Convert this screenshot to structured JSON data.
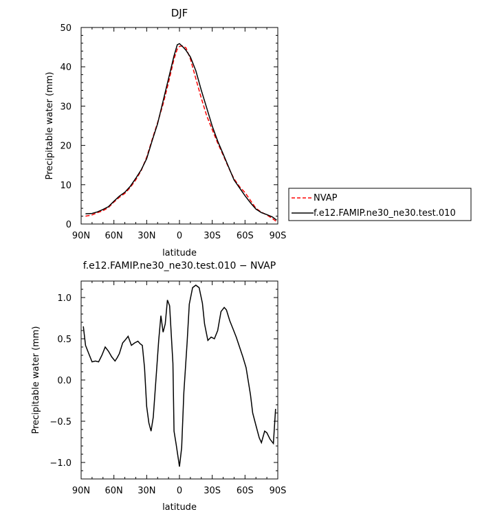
{
  "chart_data": [
    {
      "type": "line",
      "title": "DJF",
      "xlabel": "latitude",
      "ylabel": "Precipitable water (mm)",
      "xlim": [
        -90,
        90
      ],
      "ylim": [
        0,
        50
      ],
      "x_ticks": [
        -90,
        -60,
        -30,
        0,
        30,
        60,
        90
      ],
      "x_tick_labels": [
        "90N",
        "60N",
        "30N",
        "0",
        "30S",
        "60S",
        "90S"
      ],
      "y_ticks": [
        0,
        10,
        20,
        30,
        40,
        50
      ],
      "y_tick_labels": [
        "0",
        "10",
        "20",
        "30",
        "40",
        "50"
      ],
      "legend_position": "right",
      "series": [
        {
          "name": "NVAP",
          "color": "#ff0000",
          "dash": "dashed",
          "x": [
            -86,
            -80,
            -75,
            -70,
            -65,
            -60,
            -55,
            -50,
            -45,
            -40,
            -35,
            -30,
            -25,
            -20,
            -15,
            -10,
            -5,
            -2,
            0,
            3,
            6,
            10,
            15,
            20,
            25,
            30,
            35,
            40,
            45,
            50,
            55,
            60,
            65,
            70,
            75,
            80,
            85,
            89
          ],
          "y": [
            2.0,
            2.3,
            2.9,
            3.4,
            4.2,
            5.6,
            6.8,
            7.8,
            9.3,
            11.2,
            13.6,
            17.0,
            21.5,
            25.8,
            30.5,
            36.0,
            42.0,
            44.5,
            45.2,
            45.3,
            44.8,
            42.0,
            37.0,
            32.0,
            27.5,
            24.0,
            20.6,
            17.5,
            14.3,
            11.5,
            9.5,
            8.0,
            6.0,
            4.0,
            3.0,
            2.3,
            1.4,
            0.6
          ]
        },
        {
          "name": "f.e12.FAMIP.ne30_ne30.test.010",
          "color": "#000000",
          "dash": "solid",
          "x": [
            -86,
            -80,
            -75,
            -70,
            -65,
            -60,
            -55,
            -50,
            -45,
            -40,
            -35,
            -30,
            -25,
            -20,
            -15,
            -10,
            -5,
            -2,
            0,
            3,
            6,
            10,
            15,
            20,
            25,
            30,
            35,
            40,
            45,
            50,
            55,
            60,
            65,
            70,
            75,
            80,
            85,
            89
          ],
          "y": [
            2.6,
            2.7,
            3.1,
            3.7,
            4.4,
            5.8,
            7.1,
            8.1,
            9.6,
            11.6,
            13.8,
            16.6,
            21.2,
            25.5,
            31.3,
            37.0,
            42.8,
            45.6,
            45.9,
            45.1,
            44.2,
            42.5,
            39.0,
            34.0,
            29.5,
            24.9,
            21.1,
            17.8,
            14.5,
            11.2,
            9.2,
            7.2,
            5.4,
            3.8,
            2.9,
            2.4,
            1.8,
            1.0
          ]
        }
      ]
    },
    {
      "type": "line",
      "title": "f.e12.FAMIP.ne30_ne30.test.010 − NVAP",
      "xlabel": "latitude",
      "ylabel": "Precipitable water (mm)",
      "xlim": [
        -90,
        90
      ],
      "ylim": [
        -1.2,
        1.2
      ],
      "x_ticks": [
        -90,
        -60,
        -30,
        0,
        30,
        60,
        90
      ],
      "x_tick_labels": [
        "90N",
        "60N",
        "30N",
        "0",
        "30S",
        "60S",
        "90S"
      ],
      "y_ticks": [
        -1.0,
        -0.5,
        0.0,
        0.5,
        1.0
      ],
      "y_tick_labels": [
        "−1.0",
        "−0.5",
        "0.0",
        "0.5",
        "1.0"
      ],
      "series": [
        {
          "color": "#000000",
          "dash": "solid",
          "x": [
            -88,
            -86,
            -83,
            -80,
            -77,
            -74,
            -71,
            -68,
            -65,
            -62,
            -59,
            -57,
            -55,
            -52,
            -50,
            -47,
            -44,
            -41,
            -38,
            -36,
            -34,
            -32,
            -30,
            -28,
            -26,
            -24,
            -21,
            -19,
            -17,
            -15,
            -13,
            -11,
            -9,
            -6,
            -5,
            -3,
            0,
            2,
            4,
            7,
            9,
            12,
            15,
            18,
            21,
            23,
            26,
            29,
            32,
            35,
            38,
            41,
            43,
            46,
            49,
            52,
            55,
            58,
            61,
            65,
            67,
            70,
            73,
            75,
            78,
            80,
            83,
            86,
            88
          ],
          "y": [
            0.65,
            0.42,
            0.32,
            0.22,
            0.23,
            0.22,
            0.3,
            0.4,
            0.35,
            0.28,
            0.23,
            0.27,
            0.32,
            0.45,
            0.48,
            0.53,
            0.42,
            0.45,
            0.47,
            0.44,
            0.42,
            0.15,
            -0.32,
            -0.52,
            -0.62,
            -0.45,
            0.1,
            0.48,
            0.78,
            0.58,
            0.68,
            0.97,
            0.9,
            0.2,
            -0.62,
            -0.78,
            -1.05,
            -0.82,
            -0.15,
            0.45,
            0.92,
            1.12,
            1.15,
            1.12,
            0.93,
            0.68,
            0.48,
            0.52,
            0.5,
            0.6,
            0.83,
            0.88,
            0.85,
            0.72,
            0.62,
            0.52,
            0.4,
            0.28,
            0.15,
            -0.18,
            -0.4,
            -0.55,
            -0.7,
            -0.76,
            -0.62,
            -0.64,
            -0.72,
            -0.77,
            -0.35
          ]
        }
      ]
    }
  ],
  "legend": {
    "entries": [
      "NVAP",
      "f.e12.FAMIP.ne30_ne30.test.010"
    ]
  }
}
